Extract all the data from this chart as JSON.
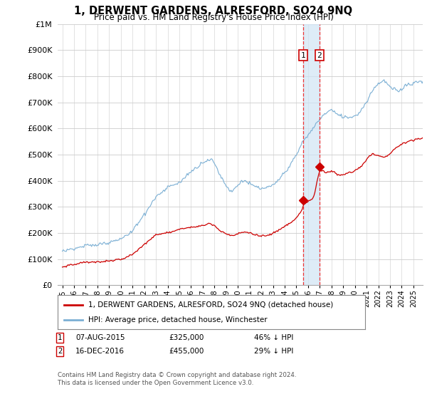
{
  "title": "1, DERWENT GARDENS, ALRESFORD, SO24 9NQ",
  "subtitle": "Price paid vs. HM Land Registry's House Price Index (HPI)",
  "ytick_values": [
    0,
    100000,
    200000,
    300000,
    400000,
    500000,
    600000,
    700000,
    800000,
    900000,
    1000000
  ],
  "ylim": [
    0,
    1000000
  ],
  "hpi_color": "#7bafd4",
  "price_color": "#cc0000",
  "sale1_date": 2015.6,
  "sale1_price": 325000,
  "sale2_date": 2016.97,
  "sale2_price": 455000,
  "vline_color": "#ee3333",
  "shade_color": "#d0e4f5",
  "legend_label_red": "1, DERWENT GARDENS, ALRESFORD, SO24 9NQ (detached house)",
  "legend_label_blue": "HPI: Average price, detached house, Winchester",
  "footnote3": "Contains HM Land Registry data © Crown copyright and database right 2024.",
  "footnote4": "This data is licensed under the Open Government Licence v3.0.",
  "background_color": "#ffffff",
  "grid_color": "#cccccc"
}
